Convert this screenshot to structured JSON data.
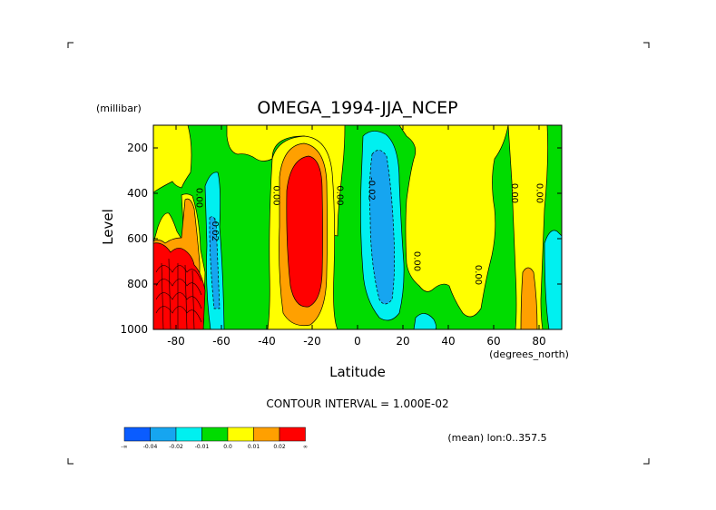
{
  "chart_data": {
    "type": "heatmap",
    "title": "OMEGA_1994-JJA_NCEP",
    "xlabel": "Latitude",
    "ylabel": "Level",
    "y_units": "(millibar)",
    "x_units": "(degrees_north)",
    "xlim": [
      -90,
      90
    ],
    "ylim": [
      1000,
      100
    ],
    "x_ticks": [
      -80,
      -60,
      -40,
      -20,
      0,
      20,
      40,
      60,
      80
    ],
    "y_ticks": [
      1000,
      800,
      600,
      400,
      200
    ],
    "contour_interval_text": "CONTOUR INTERVAL = 1.000E-02",
    "mean_text": "(mean) lon:0..357.5",
    "contour_labels": [
      {
        "text": "0.00",
        "x": -71,
        "y": 420
      },
      {
        "text": "-0.02",
        "x": -64,
        "y": 560
      },
      {
        "text": "0.00",
        "x": -37,
        "y": 410
      },
      {
        "text": "0.00",
        "x": -9,
        "y": 410
      },
      {
        "text": "-0.02",
        "x": 5,
        "y": 380
      },
      {
        "text": "0.00",
        "x": 25,
        "y": 700
      },
      {
        "text": "0.00",
        "x": 52,
        "y": 760
      },
      {
        "text": "0.00",
        "x": 68,
        "y": 400
      },
      {
        "text": "0.00",
        "x": 79,
        "y": 400
      }
    ],
    "colorbar": {
      "colors": [
        "#0a5cff",
        "#16a5f0",
        "#00f0f0",
        "#00dc00",
        "#ffff00",
        "#ffa000",
        "#ff0000"
      ],
      "tick_labels": [
        "-∞",
        "-0.04",
        "-0.02",
        "-0.01",
        "0.0",
        "0.01",
        "0.02",
        "∞"
      ]
    }
  }
}
